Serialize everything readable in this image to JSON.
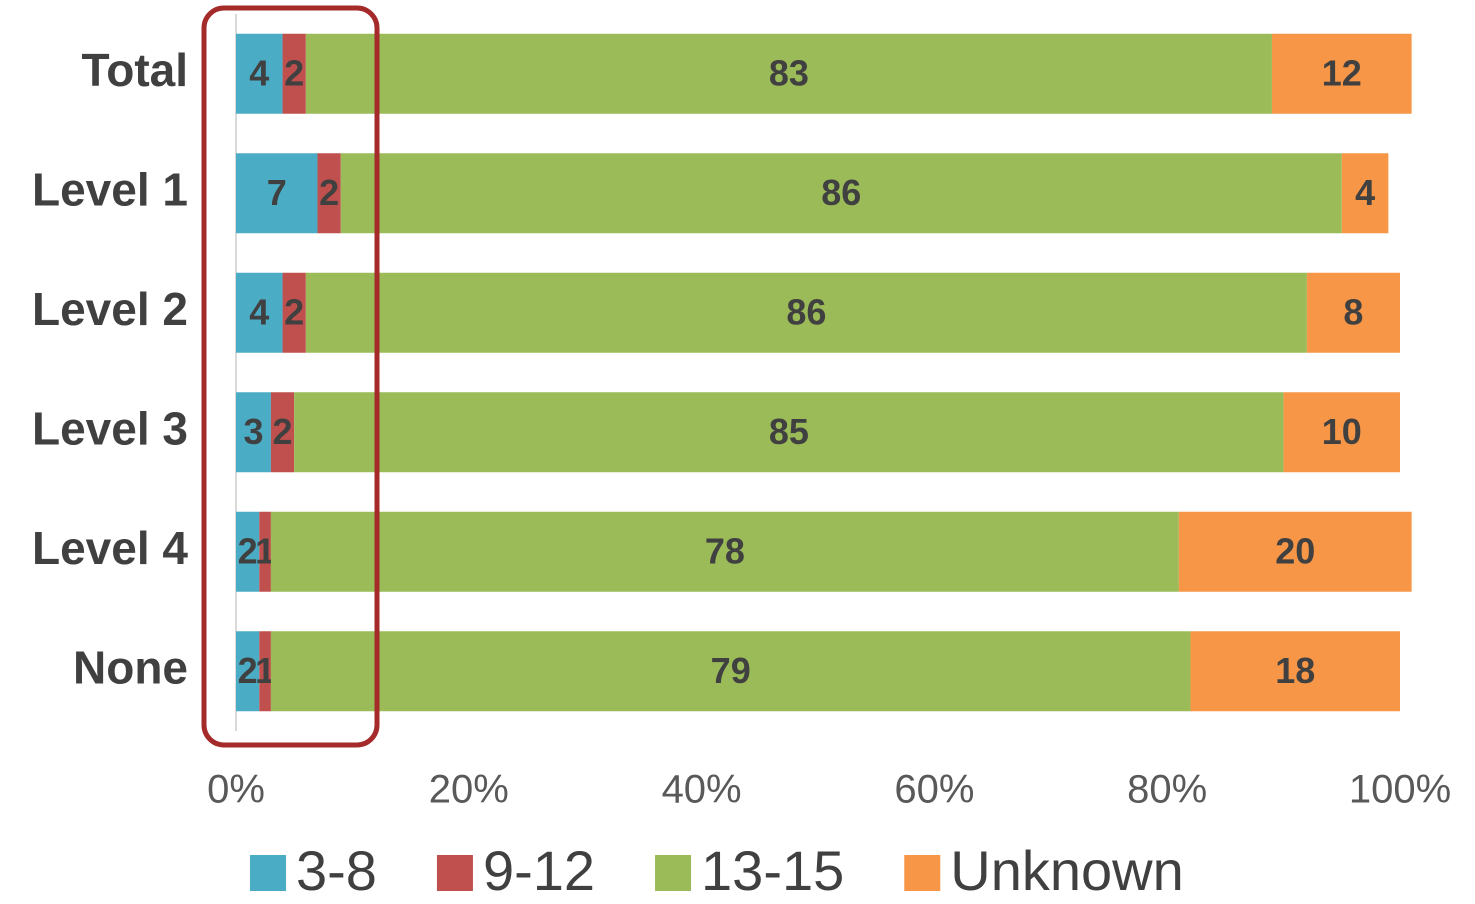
{
  "chart_data": {
    "type": "stacked-bar-horizontal",
    "categories": [
      "Total",
      "Level 1",
      "Level 2",
      "Level 3",
      "Level 4",
      "None"
    ],
    "series": [
      {
        "name": "3-8",
        "color": "#4bacc6",
        "values": [
          4,
          7,
          4,
          3,
          2,
          2
        ]
      },
      {
        "name": "9-12",
        "color": "#c0504d",
        "values": [
          2,
          2,
          2,
          2,
          1,
          1
        ]
      },
      {
        "name": "13-15",
        "color": "#9bbb59",
        "values": [
          83,
          86,
          86,
          85,
          78,
          79
        ]
      },
      {
        "name": "Unknown",
        "color": "#f79646",
        "values": [
          12,
          4,
          8,
          10,
          20,
          18
        ]
      }
    ],
    "xlim": [
      0,
      100
    ],
    "xticks": [
      {
        "value": 0,
        "label": "0%"
      },
      {
        "value": 20,
        "label": "20%"
      },
      {
        "value": 40,
        "label": "40%"
      },
      {
        "value": 60,
        "label": "60%"
      },
      {
        "value": 80,
        "label": "80%"
      },
      {
        "value": 100,
        "label": "100%"
      }
    ],
    "legend": "bottom"
  }
}
